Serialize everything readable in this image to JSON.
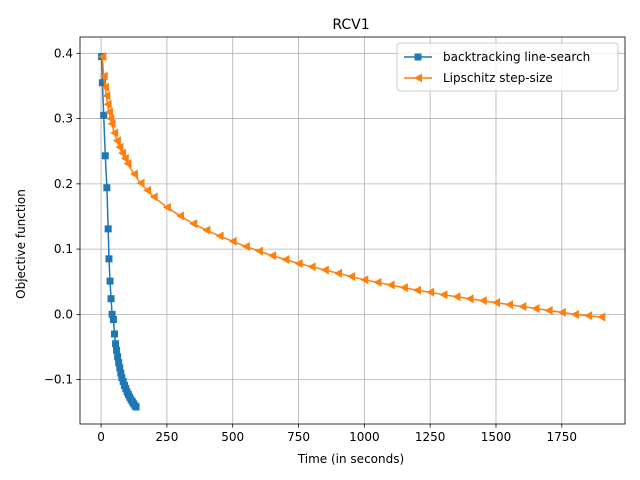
{
  "chart_data": {
    "type": "line",
    "title": "RCV1",
    "xlabel": "Time (in seconds)",
    "ylabel": "Objective function",
    "xlim": [
      -80,
      1990
    ],
    "ylim": [
      -0.168,
      0.425
    ],
    "xticks": [
      0,
      250,
      500,
      750,
      1000,
      1250,
      1500,
      1750
    ],
    "xtick_labels": [
      "0",
      "250",
      "500",
      "750",
      "1000",
      "1250",
      "1500",
      "1750"
    ],
    "yticks": [
      -0.1,
      0.0,
      0.1,
      0.2,
      0.3,
      0.4
    ],
    "ytick_labels": [
      "−0.1",
      "0.0",
      "0.1",
      "0.2",
      "0.3",
      "0.4"
    ],
    "grid": true,
    "legend_position": "top-right",
    "series": [
      {
        "name": "backtracking line-search",
        "color": "#1f77b4",
        "marker": "square",
        "x": [
          2,
          5,
          10,
          16,
          22,
          27,
          30,
          34,
          38,
          42,
          47,
          51,
          55,
          59,
          63,
          67,
          71,
          75,
          79,
          84,
          89,
          94,
          99,
          104,
          109,
          114,
          119,
          124,
          129,
          133
        ],
        "y": [
          0.395,
          0.355,
          0.305,
          0.243,
          0.194,
          0.131,
          0.085,
          0.051,
          0.024,
          0.0,
          -0.008,
          -0.03,
          -0.045,
          -0.055,
          -0.065,
          -0.074,
          -0.082,
          -0.09,
          -0.097,
          -0.103,
          -0.109,
          -0.114,
          -0.119,
          -0.123,
          -0.127,
          -0.131,
          -0.134,
          -0.137,
          -0.14,
          -0.142
        ]
      },
      {
        "name": "Lipschitz step-size",
        "color": "#ff7f0e",
        "marker": "triangle-left",
        "x": [
          5,
          10,
          15,
          20,
          25,
          30,
          35,
          40,
          50,
          60,
          70,
          80,
          90,
          100,
          125,
          150,
          175,
          200,
          250,
          300,
          350,
          400,
          450,
          500,
          550,
          600,
          650,
          700,
          750,
          800,
          850,
          900,
          950,
          1000,
          1050,
          1100,
          1150,
          1200,
          1250,
          1300,
          1350,
          1400,
          1450,
          1500,
          1550,
          1600,
          1650,
          1700,
          1750,
          1800,
          1850,
          1900
        ],
        "y": [
          0.395,
          0.365,
          0.348,
          0.335,
          0.322,
          0.31,
          0.3,
          0.292,
          0.278,
          0.266,
          0.256,
          0.247,
          0.239,
          0.231,
          0.215,
          0.201,
          0.19,
          0.18,
          0.164,
          0.151,
          0.139,
          0.129,
          0.12,
          0.112,
          0.104,
          0.097,
          0.09,
          0.084,
          0.078,
          0.073,
          0.068,
          0.063,
          0.058,
          0.053,
          0.049,
          0.045,
          0.041,
          0.037,
          0.034,
          0.03,
          0.027,
          0.024,
          0.021,
          0.018,
          0.015,
          0.012,
          0.009,
          0.006,
          0.003,
          0.0,
          -0.002,
          -0.004
        ]
      }
    ]
  }
}
